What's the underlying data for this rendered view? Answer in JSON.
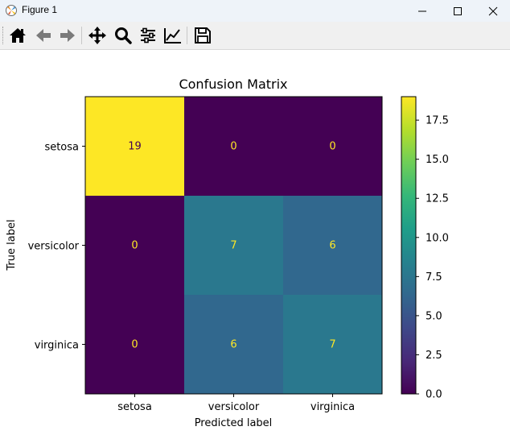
{
  "window": {
    "title": "Figure 1",
    "controls": [
      "minimize",
      "maximize",
      "close"
    ]
  },
  "toolbar": {
    "buttons": [
      {
        "icon": "home-icon",
        "tooltip": "Reset original view"
      },
      {
        "icon": "back-arrow-icon",
        "tooltip": "Back"
      },
      {
        "icon": "forward-arrow-icon",
        "tooltip": "Forward"
      },
      {
        "icon": "pan-icon",
        "tooltip": "Pan"
      },
      {
        "icon": "zoom-icon",
        "tooltip": "Zoom"
      },
      {
        "icon": "subplots-icon",
        "tooltip": "Configure subplots"
      },
      {
        "icon": "axes-edit-icon",
        "tooltip": "Edit axis"
      },
      {
        "icon": "save-icon",
        "tooltip": "Save the figure"
      }
    ]
  },
  "chart_data": {
    "type": "heatmap",
    "title": "Confusion Matrix",
    "xlabel": "Predicted label",
    "ylabel": "True label",
    "x_categories": [
      "setosa",
      "versicolor",
      "virginica"
    ],
    "y_categories": [
      "setosa",
      "versicolor",
      "virginica"
    ],
    "values": [
      [
        19,
        0,
        0
      ],
      [
        0,
        7,
        6
      ],
      [
        0,
        6,
        7
      ]
    ],
    "colormap": "viridis",
    "vmin": 0,
    "vmax": 19,
    "colorbar_ticks": [
      "0.0",
      "2.5",
      "5.0",
      "7.5",
      "10.0",
      "12.5",
      "15.0",
      "17.5"
    ],
    "colorbar_tick_values": [
      0,
      2.5,
      5,
      7.5,
      10,
      12.5,
      15,
      17.5
    ],
    "cell_colors": [
      [
        "#fde725",
        "#440154",
        "#440154"
      ],
      [
        "#440154",
        "#2a788e",
        "#31688e"
      ],
      [
        "#440154",
        "#31688e",
        "#2a788e"
      ]
    ],
    "text_colors": {
      "on_dark": "#fde725",
      "on_light": "#440154"
    }
  }
}
